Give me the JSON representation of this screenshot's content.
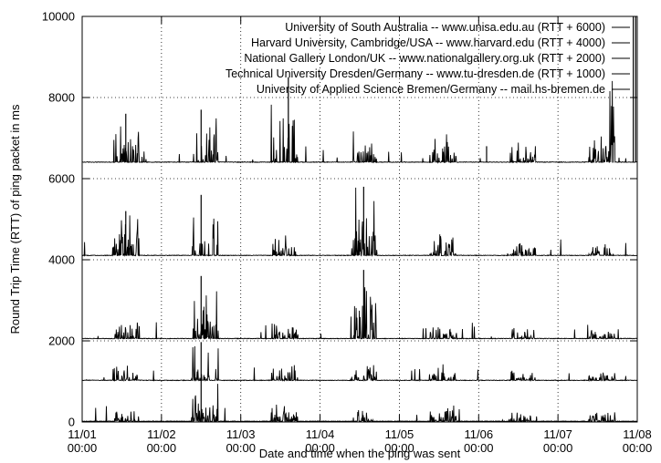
{
  "chart_data": {
    "type": "line",
    "title": "",
    "xlabel": "Date and time when the ping was sent",
    "ylabel": "Round Trip Time (RTT) of ping packet in ms",
    "xlim": [
      "11/01 00:00",
      "11/08 00:00"
    ],
    "ylim": [
      0,
      10000
    ],
    "y_ticks": [
      0,
      2000,
      4000,
      6000,
      8000,
      10000
    ],
    "x_ticks": [
      {
        "date": "11/01",
        "time": "00:00"
      },
      {
        "date": "11/02",
        "time": "00:00"
      },
      {
        "date": "11/03",
        "time": "00:00"
      },
      {
        "date": "11/04",
        "time": "00:00"
      },
      {
        "date": "11/05",
        "time": "00:00"
      },
      {
        "date": "11/06",
        "time": "00:00"
      },
      {
        "date": "11/07",
        "time": "00:00"
      },
      {
        "date": "11/08",
        "time": "00:00"
      }
    ],
    "grid": "dotted",
    "legend_position": "top-right",
    "series": [
      {
        "name": "University of South Australia -- www.unisa.edu.au (RTT + 6000)",
        "offset": 6000,
        "baseline_ms": 400,
        "peaks_ms": [
          {
            "day": 0.55,
            "rtt": 1200
          },
          {
            "day": 1.5,
            "rtt": 1300
          },
          {
            "day": 2.6,
            "rtt": 2100
          },
          {
            "day": 5.1,
            "rtt": 400
          },
          {
            "day": 6.95,
            "rtt": 7000
          },
          {
            "day": 6.98,
            "rtt": 4300
          }
        ]
      },
      {
        "name": "Harvard University, Cambridge/USA -- www.harvard.edu (RTT + 4000)",
        "offset": 4000,
        "baseline_ms": 100,
        "peaks_ms": [
          {
            "day": 0.55,
            "rtt": 1100
          },
          {
            "day": 1.5,
            "rtt": 1500
          },
          {
            "day": 3.55,
            "rtt": 1700
          }
        ]
      },
      {
        "name": "National Gallery London/UK -- www.nationalgallery.org.uk (RTT + 2000)",
        "offset": 2000,
        "baseline_ms": 50,
        "peaks_ms": [
          {
            "day": 1.5,
            "rtt": 1550
          },
          {
            "day": 3.55,
            "rtt": 1700
          }
        ]
      },
      {
        "name": "Technical University Dresden/Germany -- www.tu-dresden.de (RTT + 1000)",
        "offset": 1000,
        "baseline_ms": 20,
        "peaks_ms": [
          {
            "day": 1.5,
            "rtt": 950
          }
        ]
      },
      {
        "name": "University of Applied Science Bremen/Germany -- mail.hs-bremen.de",
        "offset": 0,
        "baseline_ms": 10,
        "peaks_ms": [
          {
            "day": 1.5,
            "rtt": 1050
          }
        ]
      }
    ]
  }
}
